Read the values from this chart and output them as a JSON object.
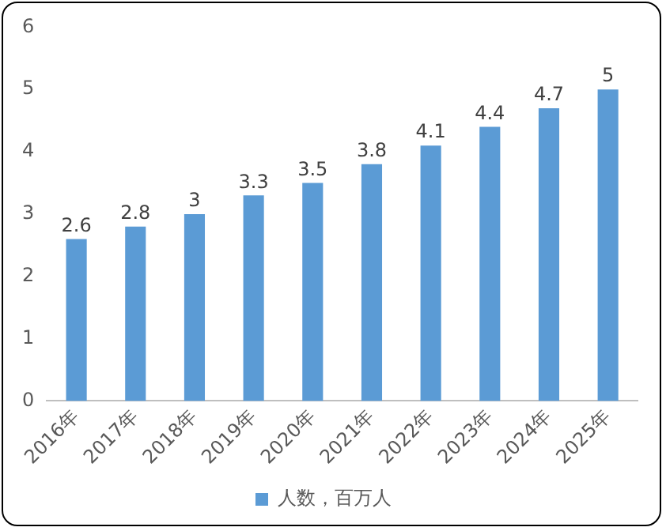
{
  "chart_data": {
    "type": "bar",
    "categories": [
      "2016年",
      "2017年",
      "2018年",
      "2019年",
      "2020年",
      "2021年",
      "2022年",
      "2023年",
      "2024年",
      "2025年"
    ],
    "series": [
      {
        "name": "人数，百万人",
        "color": "#5b9bd5",
        "values": [
          2.6,
          2.8,
          3,
          3.3,
          3.5,
          3.8,
          4.1,
          4.4,
          4.7,
          5
        ]
      }
    ],
    "ylim": [
      0,
      6
    ],
    "yticks": [
      0,
      1,
      2,
      3,
      4,
      5,
      6
    ],
    "grid": false,
    "legend": "bottom",
    "data_labels": true
  }
}
